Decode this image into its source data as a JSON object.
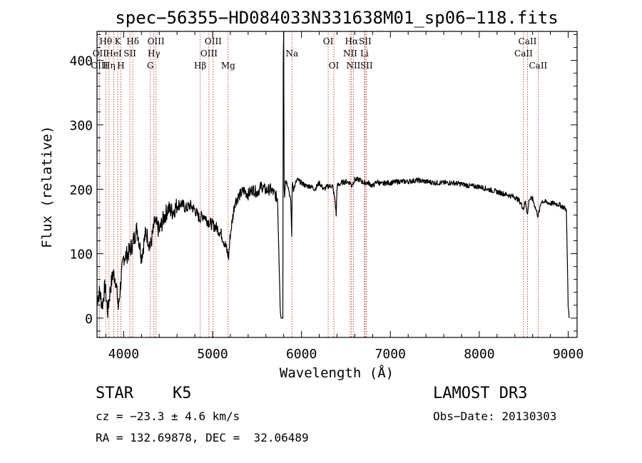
{
  "chart_data": {
    "type": "line",
    "title": "spec−56355−HD084033N331638M01_sp06−118.fits",
    "xlabel": "Wavelength (Å)",
    "ylabel": "Flux (relative)",
    "xlim": [
      3700,
      9100
    ],
    "ylim": [
      -30,
      445
    ],
    "xticks": [
      4000,
      5000,
      6000,
      7000,
      8000,
      9000
    ],
    "yticks": [
      0,
      100,
      200,
      300,
      400
    ],
    "grid": false,
    "line_color": "#000000",
    "marker_color": "#b22222",
    "spectral_lines": [
      {
        "label": "Hθ",
        "wavelength": 3798,
        "row": 0
      },
      {
        "label": "OII",
        "wavelength": 3727,
        "row": 1
      },
      {
        "label": "OIII",
        "wavelength": 3727,
        "row": 2
      },
      {
        "label": "K",
        "wavelength": 3934,
        "row": 0
      },
      {
        "label": "HeI",
        "wavelength": 3889,
        "row": 1
      },
      {
        "label": "Hη",
        "wavelength": 3835,
        "row": 2
      },
      {
        "label": "Hδ",
        "wavelength": 4102,
        "row": 0
      },
      {
        "label": "SII",
        "wavelength": 4070,
        "row": 1
      },
      {
        "label": "H",
        "wavelength": 3969,
        "row": 2
      },
      {
        "label": "OIII",
        "wavelength": 4363,
        "row": 0
      },
      {
        "label": "Hγ",
        "wavelength": 4340,
        "row": 1
      },
      {
        "label": "G",
        "wavelength": 4300,
        "row": 2
      },
      {
        "label": "OIII",
        "wavelength": 5007,
        "row": 0
      },
      {
        "label": "OIII",
        "wavelength": 4959,
        "row": 1
      },
      {
        "label": "Hβ",
        "wavelength": 4861,
        "row": 2
      },
      {
        "label": "Mg",
        "wavelength": 5175,
        "row": 2
      },
      {
        "label": "Na",
        "wavelength": 5893,
        "row": 1
      },
      {
        "label": "OI",
        "wavelength": 6300,
        "row": 0
      },
      {
        "label": "OI",
        "wavelength": 6364,
        "row": 2
      },
      {
        "label": "Hα",
        "wavelength": 6563,
        "row": 0
      },
      {
        "label": "SII",
        "wavelength": 6716,
        "row": 0
      },
      {
        "label": "NII",
        "wavelength": 6548,
        "row": 1
      },
      {
        "label": "Li",
        "wavelength": 6708,
        "row": 1
      },
      {
        "label": "NII",
        "wavelength": 6584,
        "row": 2
      },
      {
        "label": "SII",
        "wavelength": 6731,
        "row": 2
      },
      {
        "label": "CaII",
        "wavelength": 8542,
        "row": 0
      },
      {
        "label": "CaII",
        "wavelength": 8498,
        "row": 1
      },
      {
        "label": "CaII",
        "wavelength": 8662,
        "row": 2
      }
    ],
    "series": [
      {
        "x": [
          3700,
          3730,
          3760,
          3790,
          3820,
          3850,
          3880,
          3910,
          3940,
          3970,
          4000,
          4050,
          4100,
          4150,
          4200,
          4250,
          4300,
          4350,
          4400,
          4450,
          4500,
          4550,
          4600,
          4650,
          4700,
          4750,
          4800,
          4850,
          4900,
          4950,
          5000,
          5050,
          5100,
          5150,
          5180,
          5200,
          5250,
          5300,
          5350,
          5400,
          5450,
          5500,
          5550,
          5600,
          5650,
          5700,
          5730,
          5760,
          5770,
          5780,
          5790,
          5795,
          5800,
          5805,
          5810,
          5820,
          5850,
          5880,
          5890,
          5895,
          5900,
          5910,
          5950,
          6000,
          6050,
          6100,
          6150,
          6200,
          6250,
          6300,
          6350,
          6380,
          6390,
          6400,
          6450,
          6500,
          6550,
          6563,
          6600,
          6650,
          6700,
          6750,
          6800,
          6850,
          6900,
          6950,
          7000,
          7100,
          7200,
          7300,
          7400,
          7500,
          7600,
          7700,
          7800,
          7900,
          8000,
          8100,
          8200,
          8300,
          8400,
          8450,
          8498,
          8520,
          8542,
          8560,
          8600,
          8662,
          8700,
          8750,
          8800,
          8850,
          8900,
          8950,
          8980,
          9000,
          9010
        ],
        "y": [
          30,
          40,
          20,
          50,
          10,
          45,
          70,
          60,
          15,
          60,
          95,
          100,
          115,
          140,
          95,
          135,
          110,
          150,
          135,
          155,
          170,
          165,
          175,
          178,
          170,
          175,
          168,
          155,
          160,
          150,
          145,
          140,
          130,
          110,
          95,
          130,
          180,
          190,
          198,
          192,
          200,
          195,
          205,
          198,
          200,
          192,
          185,
          20,
          0,
          0,
          0,
          410,
          445,
          205,
          190,
          215,
          205,
          180,
          130,
          200,
          210,
          200,
          215,
          210,
          205,
          205,
          200,
          210,
          200,
          205,
          205,
          180,
          160,
          205,
          210,
          212,
          210,
          205,
          215,
          215,
          210,
          210,
          205,
          212,
          208,
          210,
          210,
          212,
          212,
          214,
          212,
          210,
          210,
          210,
          208,
          205,
          204,
          200,
          196,
          192,
          188,
          182,
          170,
          182,
          160,
          185,
          185,
          158,
          182,
          180,
          178,
          178,
          176,
          172,
          168,
          20,
          0
        ]
      }
    ]
  },
  "info": {
    "object_type": "STAR",
    "subclass": "K5",
    "survey": "LAMOST DR3",
    "redshift_line": "cz = −23.3 ± 4.6 km/s",
    "obs_date_line": "Obs−Date: 20130303",
    "coords_line": "RA = 132.69878, DEC =  32.06489"
  }
}
